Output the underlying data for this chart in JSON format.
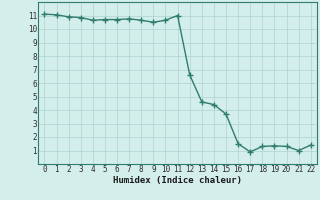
{
  "title": "",
  "xlabel": "Humidex (Indice chaleur)",
  "ylabel": "",
  "x": [
    0,
    1,
    2,
    3,
    4,
    5,
    6,
    7,
    8,
    9,
    10,
    11,
    12,
    13,
    14,
    15,
    16,
    17,
    18,
    19,
    20,
    21,
    22
  ],
  "y": [
    11.1,
    11.05,
    10.9,
    10.85,
    10.65,
    10.7,
    10.7,
    10.75,
    10.65,
    10.5,
    10.65,
    11.0,
    6.6,
    4.6,
    4.4,
    3.7,
    1.5,
    0.9,
    1.3,
    1.35,
    1.3,
    1.0,
    1.4
  ],
  "line_color": "#2e7d6e",
  "bg_color": "#d4eeeb",
  "grid_color": "#aed4cf",
  "ylim": [
    0,
    12
  ],
  "xlim": [
    -0.5,
    22.5
  ],
  "yticks": [
    1,
    2,
    3,
    4,
    5,
    6,
    7,
    8,
    9,
    10,
    11
  ],
  "xticks": [
    0,
    1,
    2,
    3,
    4,
    5,
    6,
    7,
    8,
    9,
    10,
    11,
    12,
    13,
    14,
    15,
    16,
    17,
    18,
    19,
    20,
    21,
    22
  ],
  "marker": "+",
  "markersize": 4,
  "linewidth": 1.0,
  "tick_fontsize": 5.5,
  "xlabel_fontsize": 6.5
}
